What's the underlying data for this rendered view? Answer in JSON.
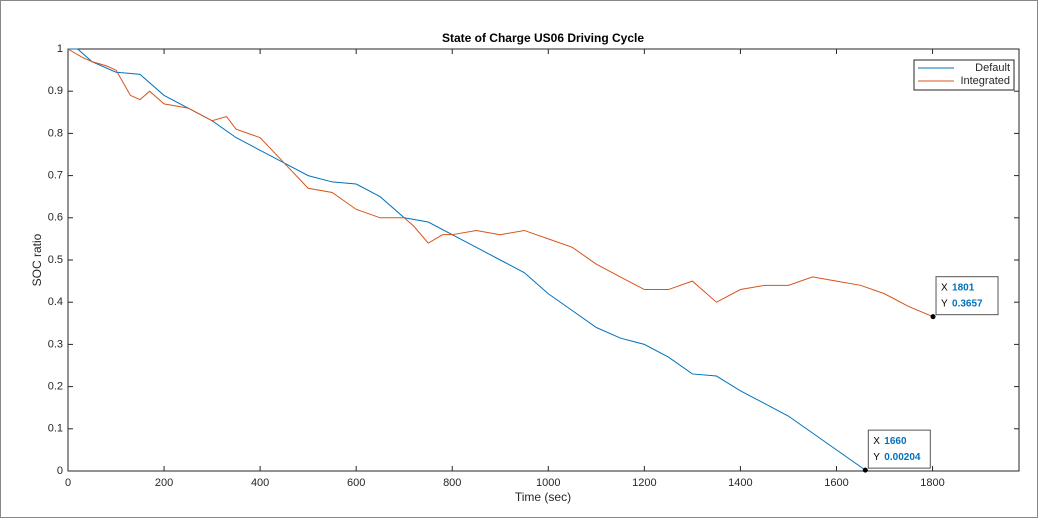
{
  "chart_data": {
    "type": "line",
    "title": "State of Charge US06 Driving Cycle",
    "x_label": "Time (sec)",
    "y_label": "SOC ratio",
    "xlim": [
      0,
      1980
    ],
    "ylim": [
      0,
      1
    ],
    "xticks": [
      0,
      200,
      400,
      600,
      800,
      1000,
      1200,
      1400,
      1600,
      1800
    ],
    "yticks": [
      0,
      0.1,
      0.2,
      0.3,
      0.4,
      0.5,
      0.6,
      0.7,
      0.8,
      0.9,
      1
    ],
    "legend": "upper right",
    "series": [
      {
        "name": "Default",
        "color": "#0072bd",
        "x": [
          0,
          20,
          50,
          100,
          150,
          200,
          250,
          300,
          350,
          400,
          450,
          500,
          550,
          600,
          650,
          700,
          750,
          800,
          850,
          900,
          950,
          1000,
          1050,
          1100,
          1150,
          1200,
          1250,
          1300,
          1350,
          1400,
          1450,
          1500,
          1550,
          1600,
          1660
        ],
        "values": [
          1,
          1,
          0.97,
          0.945,
          0.94,
          0.89,
          0.86,
          0.83,
          0.79,
          0.76,
          0.73,
          0.7,
          0.685,
          0.68,
          0.65,
          0.6,
          0.59,
          0.56,
          0.53,
          0.5,
          0.47,
          0.42,
          0.38,
          0.34,
          0.315,
          0.3,
          0.27,
          0.23,
          0.225,
          0.19,
          0.16,
          0.13,
          0.09,
          0.05,
          0.00204
        ]
      },
      {
        "name": "Integrated",
        "color": "#d95319",
        "x": [
          0,
          30,
          50,
          80,
          100,
          130,
          150,
          170,
          200,
          250,
          300,
          330,
          350,
          400,
          450,
          500,
          550,
          600,
          650,
          700,
          720,
          750,
          780,
          800,
          850,
          900,
          950,
          1000,
          1050,
          1100,
          1150,
          1200,
          1250,
          1300,
          1350,
          1400,
          1450,
          1500,
          1550,
          1600,
          1650,
          1700,
          1750,
          1801
        ],
        "values": [
          1,
          0.98,
          0.97,
          0.96,
          0.95,
          0.89,
          0.88,
          0.9,
          0.87,
          0.86,
          0.83,
          0.84,
          0.81,
          0.79,
          0.73,
          0.67,
          0.66,
          0.62,
          0.6,
          0.6,
          0.58,
          0.54,
          0.56,
          0.56,
          0.57,
          0.56,
          0.57,
          0.55,
          0.53,
          0.49,
          0.46,
          0.43,
          0.43,
          0.45,
          0.4,
          0.43,
          0.44,
          0.44,
          0.46,
          0.45,
          0.44,
          0.42,
          0.39,
          0.3657
        ]
      }
    ],
    "datatips": [
      {
        "x_label": "X",
        "x": 1801,
        "y_label": "Y",
        "y": 0.3657
      },
      {
        "x_label": "X",
        "x": 1660,
        "y_label": "Y",
        "y": 0.00204
      }
    ]
  }
}
